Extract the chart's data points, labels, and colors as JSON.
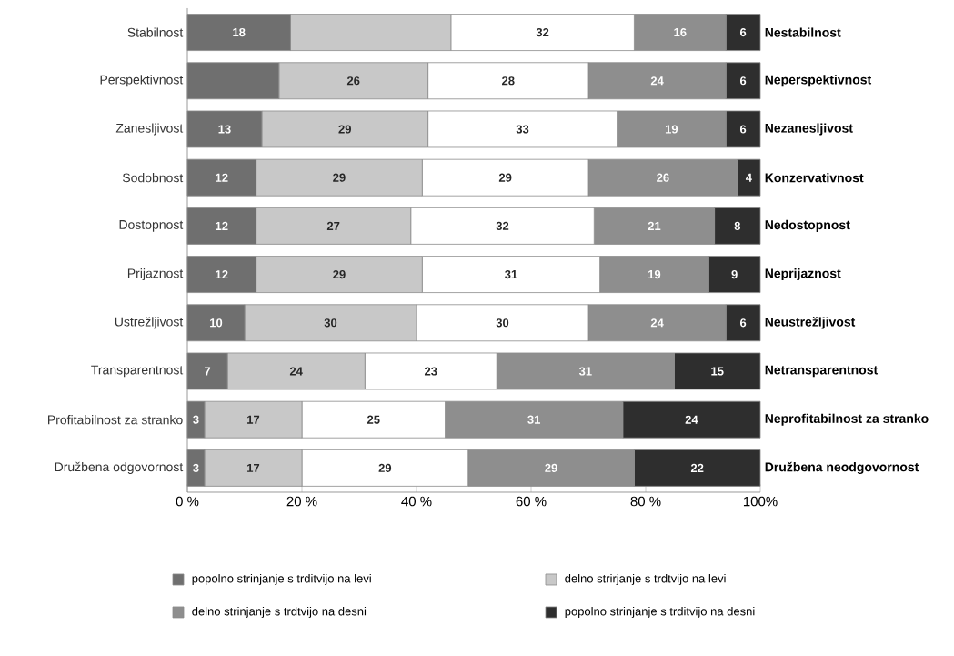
{
  "chart_data": {
    "type": "bar",
    "orientation": "horizontal",
    "stacked": true,
    "categories": [
      "Stabilnost",
      "Perspektivnost",
      "Zanesljivost",
      "Sodobnost",
      "Dostopnost",
      "Prijaznost",
      "Ustrežljivost",
      "Transparentnost",
      "Profitabilnost za stranko",
      "Družbena odgovornost"
    ],
    "series": [
      {
        "name": "popolno strinjanje s trditvijo na levi",
        "color": "#6f6f6f",
        "values": [
          18,
          16,
          13,
          12,
          12,
          12,
          10,
          7,
          3,
          3
        ],
        "value_labels": [
          "18",
          null,
          "13",
          "12",
          "12",
          "12",
          "10",
          "7",
          "3",
          "3"
        ]
      },
      {
        "name": "delno strirjanje s trdtvijo na levi",
        "color": "#c8c8c8",
        "values": [
          28,
          26,
          29,
          29,
          27,
          29,
          30,
          24,
          17,
          17
        ],
        "value_labels": [
          null,
          "26",
          "29",
          "29",
          "27",
          "29",
          "30",
          "24",
          "17",
          "17"
        ]
      },
      {
        "color": "#ffffff",
        "values": [
          32,
          28,
          33,
          29,
          32,
          31,
          30,
          23,
          25,
          29
        ],
        "value_labels": [
          "32",
          "28",
          "33",
          "29",
          "32",
          "31",
          "30",
          "23",
          "25",
          "29"
        ]
      },
      {
        "name": "delno strinjanje s trdtvijo na desni",
        "color": "#8e8e8e",
        "values": [
          16,
          24,
          19,
          26,
          21,
          19,
          24,
          31,
          31,
          29
        ],
        "value_labels": [
          "16",
          "24",
          "19",
          "26",
          "21",
          "19",
          "24",
          "31",
          "31",
          "29"
        ]
      },
      {
        "name": "popolno strinjanje s trditvijo na desni",
        "color": "#2e2e2e",
        "values": [
          6,
          6,
          6,
          4,
          8,
          9,
          6,
          15,
          24,
          22
        ],
        "value_labels": [
          "6",
          "6",
          "6",
          "4",
          "8",
          "9",
          "6",
          "15",
          "24",
          "22"
        ]
      }
    ],
    "xlim": [
      0,
      100
    ],
    "xticks": [
      {
        "value": 0,
        "label": "0 %"
      },
      {
        "value": 20,
        "label": "20 %"
      },
      {
        "value": 40,
        "label": "40 %"
      },
      {
        "value": 60,
        "label": "60 %"
      },
      {
        "value": 80,
        "label": "80 %"
      },
      {
        "value": 100,
        "label": "100%"
      }
    ],
    "annotations": [
      "Nestabilnost",
      "Neperspektivnost",
      "Nezanesljivost",
      "Konzervativnost",
      "Nedostopnost",
      "Neprijaznost",
      "Neustrežljivost",
      "Netransparentnost",
      "Neprofitabilnost za stranko",
      "Družbena neodgovornost"
    ],
    "legend": "bottom"
  }
}
